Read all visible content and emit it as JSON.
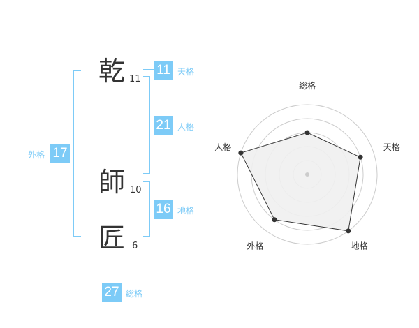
{
  "name": {
    "chars": [
      {
        "char": "乾",
        "strokes": "11"
      },
      {
        "char": "師",
        "strokes": "10"
      },
      {
        "char": "匠",
        "strokes": "6"
      }
    ]
  },
  "fortunes": {
    "tenkaku": {
      "label": "天格",
      "value": "11"
    },
    "jinkaku": {
      "label": "人格",
      "value": "21"
    },
    "chikaku": {
      "label": "地格",
      "value": "16"
    },
    "gaikaku": {
      "label": "外格",
      "value": "17"
    },
    "soukaku": {
      "label": "総格",
      "value": "27"
    }
  },
  "colors": {
    "accent": "#7dcbf7",
    "polygon_fill": "#f0f0f0",
    "polygon_stroke": "#333333",
    "ring": "#cccccc"
  },
  "chart_data": {
    "type": "radar",
    "axes": [
      "総格",
      "天格",
      "地格",
      "外格",
      "人格"
    ],
    "values": [
      3,
      4,
      5,
      4,
      5
    ],
    "range": [
      0,
      5
    ],
    "rings": 5
  }
}
